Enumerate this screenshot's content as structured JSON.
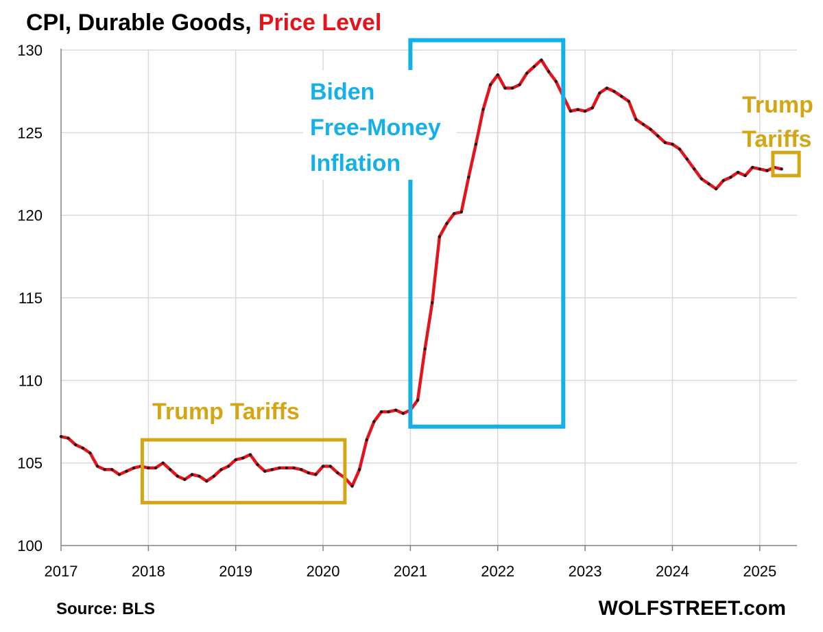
{
  "title": {
    "part1": "CPI, Durable Goods,",
    "part2": "Price Level",
    "part2_color": "#e3141b"
  },
  "footer": {
    "source": "Source: BLS",
    "brand": "WOLFSTREET.com"
  },
  "annotations": {
    "biden": {
      "lines": [
        "Biden",
        "Free-Money",
        "Inflation"
      ],
      "color": "#16b0e8",
      "start_year": 2021.0,
      "end_year": 2022.75,
      "y_top": 130.6,
      "y_bottom": 107.2
    },
    "trump_first": {
      "label": "Trump Tariffs",
      "color": "#d4a614",
      "start_year": 2017.93,
      "end_year": 2020.25,
      "y_top": 106.4,
      "y_bottom": 102.6
    },
    "trump_second": {
      "lines": [
        "Trump",
        "Tariffs"
      ],
      "color": "#d4a614",
      "start_year": 2025.15,
      "end_year": 2025.45,
      "y_top": 123.8,
      "y_bottom": 122.4
    }
  },
  "chart_data": {
    "type": "line",
    "title": "CPI, Durable Goods, Price Level",
    "xlim": [
      2017.0,
      2025.43
    ],
    "ylim": [
      100,
      130
    ],
    "x_ticks": [
      2017,
      2018,
      2019,
      2020,
      2021,
      2022,
      2023,
      2024,
      2025
    ],
    "y_ticks": [
      100,
      105,
      110,
      115,
      120,
      125,
      130
    ],
    "grid": true,
    "series": [
      {
        "line_color": "#e3141b",
        "marker_color": "#1a1a1a",
        "start": "2017-01",
        "frequency": "monthly",
        "values": [
          106.6,
          106.5,
          106.1,
          105.9,
          105.6,
          104.8,
          104.6,
          104.6,
          104.3,
          104.5,
          104.7,
          104.8,
          104.7,
          104.7,
          105.0,
          104.6,
          104.2,
          104.0,
          104.3,
          104.2,
          103.9,
          104.2,
          104.6,
          104.8,
          105.2,
          105.3,
          105.5,
          104.9,
          104.5,
          104.6,
          104.7,
          104.7,
          104.7,
          104.6,
          104.4,
          104.3,
          104.8,
          104.8,
          104.4,
          104.1,
          103.6,
          104.6,
          106.4,
          107.5,
          108.1,
          108.1,
          108.2,
          108.0,
          108.2,
          108.8,
          111.9,
          114.7,
          118.7,
          119.5,
          120.1,
          120.2,
          122.3,
          124.3,
          126.4,
          127.9,
          128.5,
          127.7,
          127.7,
          127.9,
          128.6,
          129.0,
          129.4,
          128.7,
          128.1,
          127.2,
          126.3,
          126.4,
          126.3,
          126.5,
          127.4,
          127.7,
          127.5,
          127.2,
          126.9,
          125.8,
          125.5,
          125.2,
          124.8,
          124.4,
          124.3,
          124.0,
          123.4,
          122.8,
          122.2,
          121.9,
          121.6,
          122.1,
          122.3,
          122.6,
          122.4,
          122.9,
          122.8,
          122.7,
          122.9,
          122.8
        ]
      }
    ]
  }
}
